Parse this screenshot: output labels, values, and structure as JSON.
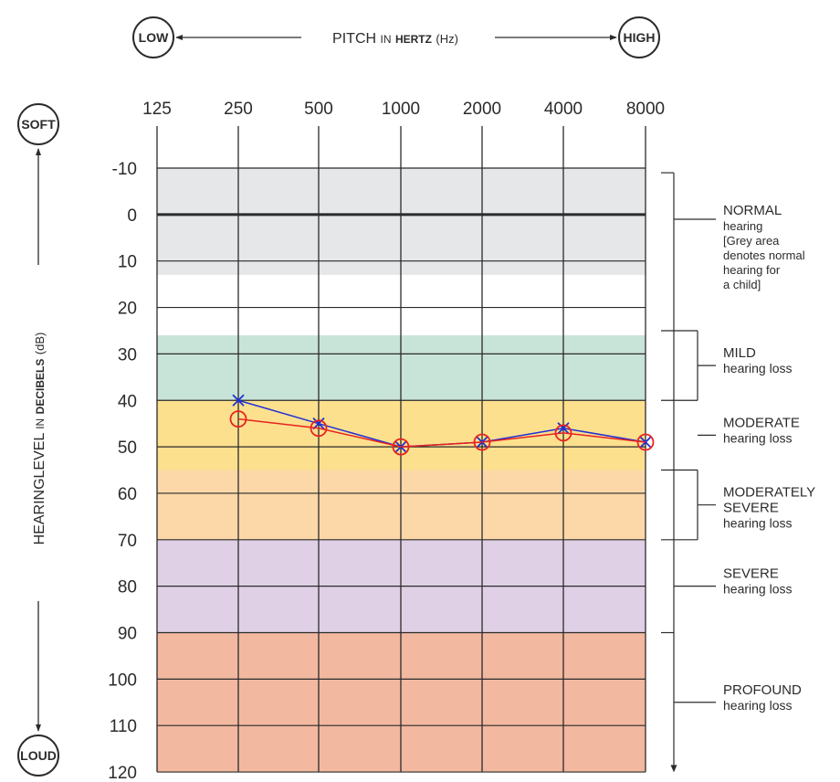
{
  "chart_data": {
    "type": "line",
    "x_title": {
      "main": "PITCH",
      "in": "IN",
      "bold": "HERTZ",
      "unit": "(Hz)"
    },
    "y_title": {
      "main": "HEARINGLEVEL",
      "in": "IN",
      "bold": "DECIBELS",
      "unit": "(dB)"
    },
    "x_left_label": "LOW",
    "x_right_label": "HIGH",
    "y_top_label": "SOFT",
    "y_bottom_label": "LOUD",
    "x_ticks": [
      "125",
      "250",
      "500",
      "1000",
      "2000",
      "4000",
      "8000"
    ],
    "y_ticks": [
      "-10",
      "0",
      "10",
      "20",
      "30",
      "40",
      "50",
      "60",
      "70",
      "80",
      "90",
      "100",
      "110",
      "120"
    ],
    "ylim": [
      -10,
      120
    ],
    "y_inverted": true,
    "grid": true,
    "bands": [
      {
        "from": -10,
        "to": 13,
        "color": "#e6e7e9"
      },
      {
        "from": 26,
        "to": 40,
        "color": "#c8e3d8"
      },
      {
        "from": 40,
        "to": 55,
        "color": "#fde08e"
      },
      {
        "from": 55,
        "to": 70,
        "color": "#fcd8a8"
      },
      {
        "from": 70,
        "to": 90,
        "color": "#dfd0e6"
      },
      {
        "from": 90,
        "to": 120,
        "color": "#f2b8a0"
      }
    ],
    "categories": [
      "250",
      "500",
      "1000",
      "2000",
      "4000",
      "8000"
    ],
    "series": [
      {
        "marker": "x",
        "color": "#1f2fd6",
        "values": [
          40,
          45,
          50,
          49,
          46,
          49
        ]
      },
      {
        "marker": "o",
        "color": "#e8231e",
        "values": [
          44,
          46,
          50,
          49,
          47,
          49
        ]
      }
    ],
    "severity_labels": [
      {
        "title": "NORMAL",
        "lines": [
          "hearing",
          "[Grey area",
          "denotes normal",
          "hearing for",
          "a child]"
        ],
        "from": -10,
        "to": 25
      },
      {
        "title": "MILD",
        "lines": [
          "hearing loss"
        ],
        "from": 25,
        "to": 40
      },
      {
        "title": "MODERATE",
        "lines": [
          "hearing loss"
        ],
        "from": 40,
        "to": 55
      },
      {
        "title": "MODERATELY",
        "lines": [
          "SEVERE",
          "hearing loss"
        ],
        "from": 55,
        "to": 70
      },
      {
        "title": "SEVERE",
        "lines": [
          "hearing loss"
        ],
        "from": 70,
        "to": 90
      },
      {
        "title": "PROFOUND",
        "lines": [
          "hearing loss"
        ],
        "from": 90,
        "to": 120
      }
    ]
  }
}
